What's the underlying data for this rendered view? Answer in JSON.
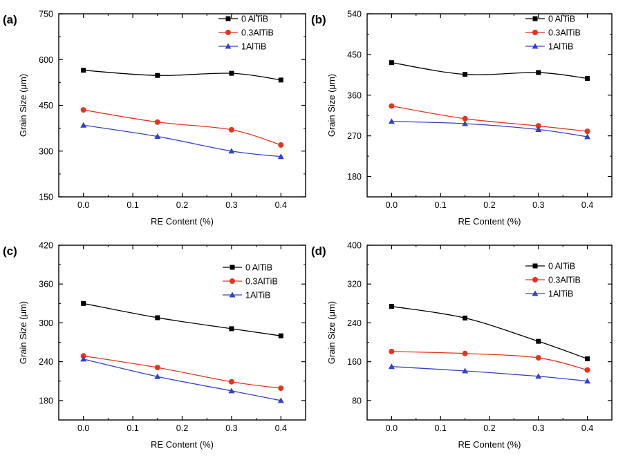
{
  "figure": {
    "legend_position": "top-right",
    "colors": {
      "0 AlTiB": "#000000",
      "0.3AlTiB": "#e8321e",
      "1AlTiB": "#3340c8"
    },
    "markers": {
      "0 AlTiB": "square",
      "0.3AlTiB": "circle",
      "1AlTiB": "triangle"
    }
  },
  "chart_data": [
    {
      "panel": "(a)",
      "type": "line",
      "xlabel": "RE Content (%)",
      "ylabel": "Grain Size (μm)",
      "xlim": [
        -0.05,
        0.45
      ],
      "ylim": [
        150,
        750
      ],
      "xticks": [
        "0.0",
        "0.1",
        "0.2",
        "0.3",
        "0.4"
      ],
      "yticks": [
        "150",
        "300",
        "450",
        "600",
        "750"
      ],
      "x": [
        0.0,
        0.15,
        0.3,
        0.4
      ],
      "series": [
        {
          "name": "0 AlTiB",
          "values": [
            565,
            548,
            555,
            533
          ]
        },
        {
          "name": "0.3AlTiB",
          "values": [
            435,
            395,
            370,
            320
          ]
        },
        {
          "name": "1AlTiB",
          "values": [
            385,
            348,
            300,
            282
          ]
        }
      ]
    },
    {
      "panel": "(b)",
      "type": "line",
      "xlabel": "RE Content (%)",
      "ylabel": "Grain Size (μm)",
      "xlim": [
        -0.05,
        0.45
      ],
      "ylim": [
        135,
        540
      ],
      "xticks": [
        "0.0",
        "0.1",
        "0.2",
        "0.3",
        "0.4"
      ],
      "yticks": [
        "180",
        "270",
        "360",
        "450",
        "540"
      ],
      "x": [
        0.0,
        0.15,
        0.3,
        0.4
      ],
      "series": [
        {
          "name": "0 AlTiB",
          "values": [
            432,
            406,
            410,
            397
          ]
        },
        {
          "name": "0.3AlTiB",
          "values": [
            336,
            308,
            292,
            280
          ]
        },
        {
          "name": "1AlTiB",
          "values": [
            302,
            297,
            284,
            268
          ]
        }
      ]
    },
    {
      "panel": "(c)",
      "type": "line",
      "xlabel": "RE Content (%)",
      "ylabel": "Grain Size (μm)",
      "xlim": [
        -0.05,
        0.45
      ],
      "ylim": [
        150,
        420
      ],
      "xticks": [
        "0.0",
        "0.1",
        "0.2",
        "0.3",
        "0.4"
      ],
      "yticks": [
        "180",
        "240",
        "300",
        "360",
        "420"
      ],
      "x": [
        0.0,
        0.15,
        0.3,
        0.4
      ],
      "series": [
        {
          "name": "0 AlTiB",
          "values": [
            330,
            308,
            291,
            280
          ]
        },
        {
          "name": "0.3AlTiB",
          "values": [
            249,
            231,
            209,
            199
          ]
        },
        {
          "name": "1AlTiB",
          "values": [
            244,
            217,
            195,
            180
          ]
        }
      ]
    },
    {
      "panel": "(d)",
      "type": "line",
      "xlabel": "RE Content (%)",
      "ylabel": "Grain Size (μm)",
      "xlim": [
        -0.05,
        0.45
      ],
      "ylim": [
        40,
        400
      ],
      "xticks": [
        "0.0",
        "0.1",
        "0.2",
        "0.3",
        "0.4"
      ],
      "yticks": [
        "80",
        "160",
        "240",
        "320",
        "400"
      ],
      "x": [
        0.0,
        0.15,
        0.3,
        0.4
      ],
      "series": [
        {
          "name": "0 AlTiB",
          "values": [
            274,
            250,
            202,
            166
          ]
        },
        {
          "name": "0.3AlTiB",
          "values": [
            181,
            177,
            168,
            143
          ]
        },
        {
          "name": "1AlTiB",
          "values": [
            150,
            141,
            130,
            120
          ]
        }
      ]
    }
  ]
}
